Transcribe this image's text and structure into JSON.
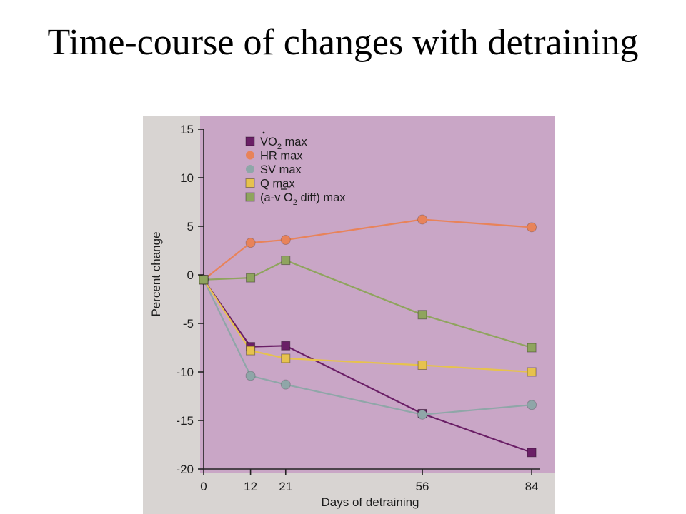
{
  "title": "Time-course of changes with detraining",
  "chart_data": {
    "type": "line",
    "xlabel": "Days of detraining",
    "ylabel": "Percent change",
    "x": [
      0,
      12,
      21,
      56,
      84
    ],
    "x_ticks": [
      "0",
      "12",
      "21",
      "56",
      "84"
    ],
    "xlim": [
      0,
      86
    ],
    "ylim": [
      -20,
      15
    ],
    "y_ticks": [
      "15",
      "10",
      "5",
      "0",
      "-5",
      "-10",
      "-15",
      "-20"
    ],
    "legend_position": "top-left",
    "series": [
      {
        "name": "V̇O2 max",
        "name_main": "VO",
        "name_sub": "2",
        "name_tail": " max",
        "marker": "square",
        "color": "#6a1f66",
        "values": [
          -0.5,
          -7.4,
          -7.3,
          -14.3,
          -18.3
        ]
      },
      {
        "name": "HR max",
        "marker": "circle",
        "color": "#e8835a",
        "values": [
          -0.5,
          3.3,
          3.6,
          5.7,
          4.9
        ]
      },
      {
        "name": "SV max",
        "marker": "circle",
        "color": "#8fa6a8",
        "values": [
          -0.5,
          -10.4,
          -11.3,
          -14.4,
          -13.4
        ]
      },
      {
        "name": "Q max",
        "marker": "square",
        "color": "#e6c24e",
        "values": [
          -0.5,
          -7.8,
          -8.6,
          -9.3,
          -10.0
        ]
      },
      {
        "name": "(a-v̄ O2 diff) max",
        "name_main": "(a-v O",
        "name_sub": "2",
        "name_tail": " diff) max",
        "marker": "square",
        "color": "#8fa45e",
        "values": [
          -0.5,
          -0.3,
          1.5,
          -4.1,
          -7.5
        ]
      }
    ]
  }
}
